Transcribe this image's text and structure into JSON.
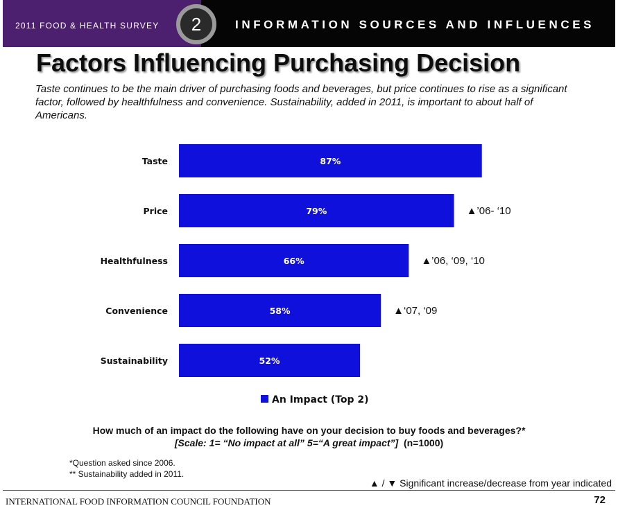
{
  "header": {
    "survey": "2011 FOOD & HEALTH SURVEY",
    "section_number": "2",
    "section_title": "INFORMATION SOURCES AND INFLUENCES"
  },
  "title": "Factors Influencing Purchasing Decision",
  "subtitle": "Taste continues to be the main driver of purchasing foods and beverages, but price continues to rise as a significant factor, followed by healthfulness and convenience. Sustainability, added in 2011, is important to about half of Americans.",
  "chart_data": {
    "type": "bar",
    "orientation": "horizontal",
    "categories": [
      "Taste",
      "Price",
      "Healthfulness",
      "Convenience",
      "Sustainability"
    ],
    "series": [
      {
        "name": "An Impact (Top 2)",
        "values": [
          87,
          79,
          66,
          58,
          52
        ],
        "color": "#1010dd"
      }
    ],
    "data_labels": [
      "87%",
      "79%",
      "66%",
      "58%",
      "52%"
    ],
    "annotations": [
      "",
      "▲’06- ‘10",
      "▲’06, ‘09, ‘10",
      "▲‘07, ‘09",
      ""
    ],
    "xlim": [
      0,
      100
    ],
    "legend_position": "bottom",
    "grid": false
  },
  "question": "How much of an impact do the following have on your decision to buy foods and beverages?*",
  "scale_text": "[Scale: 1= “No impact at all” 5=“A great impact”]",
  "sample_size": "(n=1000)",
  "notes": [
    "*Question asked since 2006.",
    "** Sustainability added in 2011."
  ],
  "significance_note": "▲ / ▼ Significant increase/decrease from year indicated",
  "footer": {
    "organization": "INTERNATIONAL FOOD INFORMATION COUNCIL FOUNDATION",
    "page": "72"
  }
}
